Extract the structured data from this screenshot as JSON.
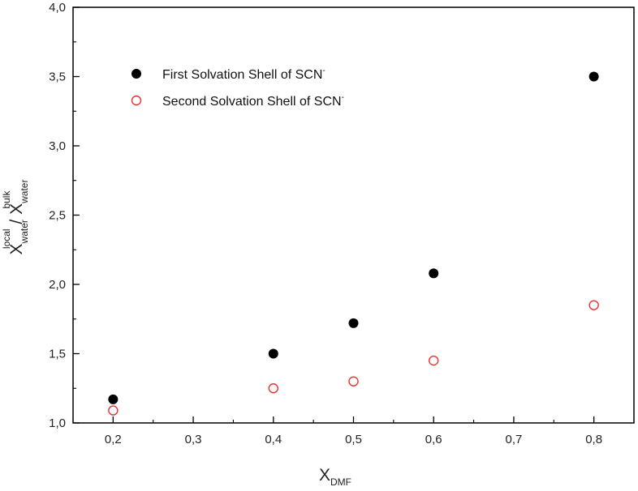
{
  "chart_data": {
    "type": "scatter",
    "x": [
      0.2,
      0.4,
      0.5,
      0.6,
      0.8
    ],
    "series": [
      {
        "name": "First Solvation Shell of SCN",
        "name_sup": "-",
        "marker": "filled-circle",
        "color": "#000000",
        "values": [
          1.17,
          1.5,
          1.72,
          2.08,
          3.5
        ]
      },
      {
        "name": "Second Solvation Shell of SCN",
        "name_sup": "-",
        "marker": "open-circle",
        "color": "#e8322f",
        "values": [
          1.09,
          1.25,
          1.3,
          1.45,
          1.85
        ]
      }
    ],
    "xlim": [
      0.15,
      0.85
    ],
    "ylim": [
      1.0,
      4.0
    ],
    "x_ticks": [
      "0,2",
      "0,3",
      "0,4",
      "0,5",
      "0,6",
      "0,7",
      "0,8"
    ],
    "x_tick_values": [
      0.2,
      0.3,
      0.4,
      0.5,
      0.6,
      0.7,
      0.8
    ],
    "y_ticks": [
      "1,0",
      "1,5",
      "2,0",
      "2,5",
      "3,0",
      "3,5",
      "4,0"
    ],
    "y_tick_values": [
      1.0,
      1.5,
      2.0,
      2.5,
      3.0,
      3.5,
      4.0
    ],
    "xlabel": {
      "main": "X",
      "sub": "DMF"
    },
    "ylabel": {
      "main1": "X",
      "sub1": "water",
      "sup1": "local",
      "separator": " / ",
      "main2": "X",
      "sub2": "water",
      "sup2": "bulk"
    },
    "grid": false,
    "legend_position": "top-left"
  }
}
